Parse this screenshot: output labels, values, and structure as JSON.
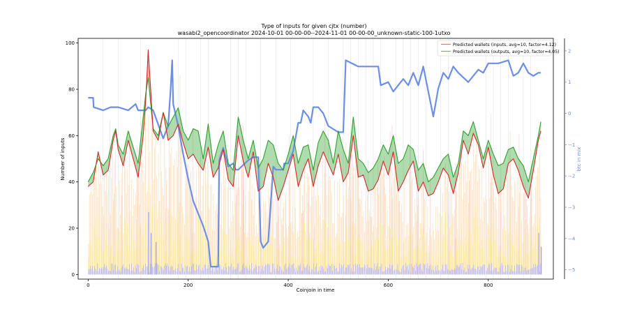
{
  "chart_data": {
    "type": "line",
    "title": "Type of inputs for given cjtx (number)",
    "subtitle": "wasabi2_opencoordinator 2024-10-01 00-00-00--2024-11-01 00-00-00_unknown-static-100-1utxo",
    "xlabel": "Coinjoin in time",
    "ylabel": "Number of inputs",
    "y2label": "btc in mix",
    "xlim": [
      -20,
      930
    ],
    "ylim": [
      -2,
      102
    ],
    "y2lim": [
      -5.3,
      2.4
    ],
    "xticks": [
      0,
      200,
      400,
      600,
      800
    ],
    "yticks": [
      0,
      20,
      40,
      60,
      80,
      100
    ],
    "y2ticks": [
      -5,
      -4,
      -3,
      -2,
      -1,
      0,
      1,
      2
    ],
    "grid": false,
    "legend": [
      "Predicted wallets (inputs, avg=10, factor=4.12)",
      "Predicted wallets (outputs, avg=10, factor=4.05)"
    ],
    "legend_position": "top-right",
    "colors": {
      "inputs": "#d62728",
      "outputs": "#2ca02c",
      "btc": "#6b8ee8",
      "bars_total": "#fdd9b0",
      "bars_small": "#fbe98c",
      "bars_blue": "#b9b9f7",
      "bars_pink": "#f3c3c3",
      "vlines": "#dddddd"
    },
    "series": [
      {
        "name": "Predicted wallets (inputs, avg=10, factor=4.12)",
        "x": [
          0,
          10,
          20,
          30,
          40,
          50,
          55,
          60,
          70,
          80,
          90,
          100,
          110,
          115,
          120,
          125,
          130,
          140,
          150,
          160,
          170,
          180,
          190,
          200,
          210,
          220,
          230,
          240,
          250,
          260,
          270,
          280,
          290,
          300,
          310,
          320,
          330,
          340,
          350,
          360,
          370,
          380,
          390,
          400,
          410,
          420,
          430,
          440,
          450,
          460,
          470,
          480,
          490,
          500,
          510,
          520,
          530,
          540,
          550,
          560,
          570,
          580,
          590,
          600,
          610,
          620,
          630,
          640,
          650,
          660,
          670,
          680,
          690,
          700,
          710,
          720,
          730,
          740,
          750,
          760,
          770,
          780,
          790,
          800,
          810,
          820,
          830,
          840,
          850,
          860,
          870,
          880,
          890,
          900,
          905
        ],
        "values": [
          38,
          40,
          53,
          43,
          45,
          58,
          62,
          54,
          47,
          58,
          50,
          42,
          60,
          75,
          97,
          80,
          62,
          58,
          70,
          58,
          60,
          65,
          57,
          50,
          52,
          48,
          45,
          55,
          42,
          46,
          54,
          41,
          38,
          60,
          49,
          42,
          53,
          36,
          38,
          48,
          42,
          32,
          38,
          45,
          52,
          38,
          45,
          50,
          38,
          47,
          53,
          48,
          43,
          52,
          40,
          44,
          60,
          42,
          43,
          36,
          37,
          41,
          49,
          43,
          53,
          36,
          40,
          45,
          49,
          36,
          40,
          34,
          35,
          40,
          46,
          43,
          35,
          44,
          58,
          52,
          61,
          56,
          46,
          55,
          43,
          35,
          37,
          48,
          50,
          45,
          38,
          33,
          45,
          58,
          62
        ]
      },
      {
        "name": "Predicted wallets (outputs, avg=10, factor=4.05)",
        "x": [
          0,
          10,
          20,
          30,
          40,
          50,
          55,
          60,
          70,
          80,
          90,
          100,
          110,
          115,
          120,
          125,
          130,
          140,
          150,
          160,
          170,
          180,
          190,
          200,
          210,
          220,
          230,
          240,
          250,
          260,
          270,
          280,
          290,
          300,
          310,
          320,
          330,
          340,
          350,
          360,
          370,
          380,
          390,
          400,
          410,
          420,
          430,
          440,
          450,
          460,
          470,
          480,
          490,
          500,
          510,
          520,
          530,
          540,
          550,
          560,
          570,
          580,
          590,
          600,
          610,
          620,
          630,
          640,
          650,
          660,
          670,
          680,
          690,
          700,
          710,
          720,
          730,
          740,
          750,
          760,
          770,
          780,
          790,
          800,
          810,
          820,
          830,
          840,
          850,
          860,
          870,
          880,
          890,
          900,
          905
        ],
        "values": [
          40,
          44,
          50,
          47,
          50,
          60,
          63,
          56,
          52,
          62,
          55,
          48,
          68,
          78,
          85,
          74,
          63,
          60,
          70,
          64,
          68,
          72,
          62,
          58,
          63,
          62,
          50,
          65,
          48,
          56,
          62,
          48,
          45,
          68,
          58,
          50,
          58,
          46,
          50,
          58,
          56,
          48,
          45,
          52,
          60,
          48,
          55,
          56,
          45,
          57,
          62,
          58,
          48,
          62,
          54,
          48,
          68,
          50,
          48,
          44,
          46,
          50,
          56,
          52,
          60,
          48,
          50,
          56,
          54,
          45,
          48,
          40,
          42,
          46,
          50,
          52,
          42,
          48,
          62,
          60,
          66,
          58,
          50,
          58,
          52,
          47,
          48,
          54,
          55,
          50,
          47,
          40,
          50,
          60,
          66
        ]
      },
      {
        "name": "btc in mix",
        "axis": "right",
        "x": [
          0,
          10,
          11,
          30,
          45,
          60,
          80,
          95,
          100,
          115,
          120,
          130,
          150,
          160,
          165,
          168,
          170,
          180,
          190,
          200,
          210,
          220,
          230,
          240,
          245,
          260,
          262,
          270,
          280,
          290,
          295,
          300,
          320,
          330,
          340,
          345,
          350,
          360,
          370,
          375,
          380,
          390,
          392,
          400,
          410,
          420,
          425,
          430,
          440,
          445,
          450,
          460,
          470,
          480,
          500,
          510,
          515,
          540,
          545,
          580,
          585,
          600,
          610,
          630,
          640,
          650,
          660,
          670,
          690,
          700,
          710,
          720,
          730,
          740,
          760,
          780,
          790,
          800,
          820,
          840,
          850,
          860,
          870,
          880,
          890,
          900,
          905
        ],
        "values": [
          0.5,
          0.5,
          0.2,
          0.1,
          0.2,
          0.2,
          0.1,
          0.3,
          0.1,
          0.1,
          0.2,
          0.1,
          -0.8,
          -0.4,
          0.8,
          1.7,
          0.3,
          -0.4,
          -1.3,
          -2.1,
          -2.8,
          -3.2,
          -3.6,
          -4.1,
          -4.9,
          -4.9,
          -1.5,
          -1.1,
          -1.7,
          -1.6,
          -1.8,
          -1.8,
          -1.5,
          -1.4,
          -1.4,
          -4.1,
          -4.3,
          -4.1,
          -1.7,
          -1.8,
          -1.8,
          -1.8,
          -1.6,
          -1.6,
          -1.2,
          -0.3,
          -0.3,
          0.1,
          -0.1,
          -0.3,
          0.2,
          0.2,
          0.0,
          -0.4,
          -0.6,
          -0.6,
          1.7,
          1.5,
          1.5,
          1.5,
          0.9,
          1.0,
          0.7,
          1.1,
          0.9,
          1.3,
          0.9,
          1.5,
          -0.1,
          0.8,
          1.3,
          1.1,
          1.5,
          1.3,
          1.0,
          1.4,
          1.3,
          1.6,
          1.6,
          1.7,
          1.2,
          1.3,
          1.6,
          1.3,
          1.2,
          1.3,
          1.3
        ]
      }
    ]
  }
}
